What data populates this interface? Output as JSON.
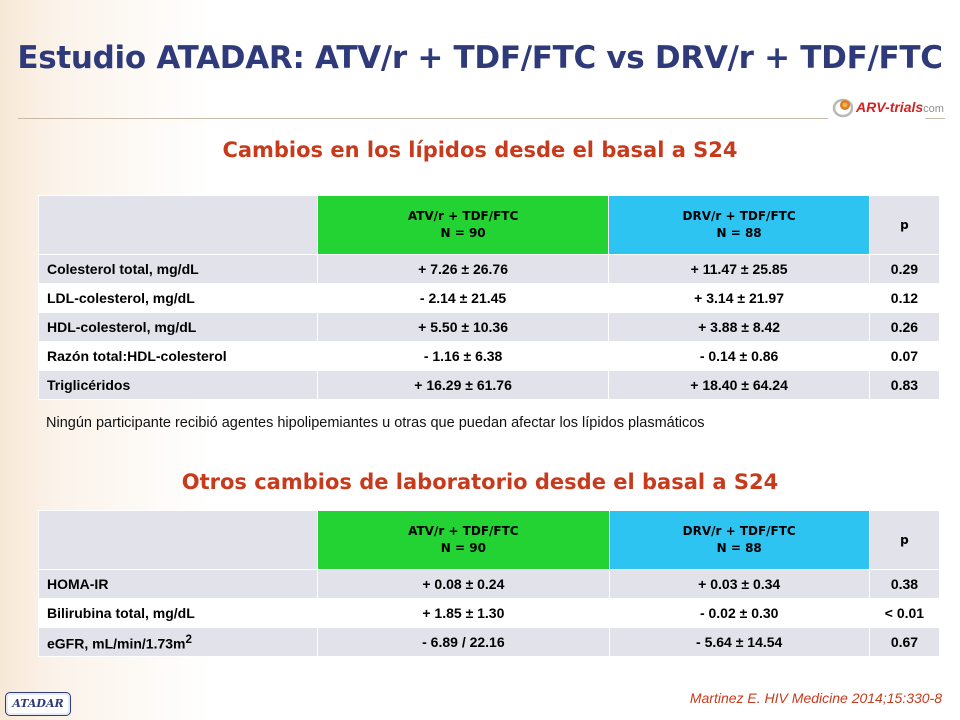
{
  "title": "Estudio ATADAR: ATV/r + TDF/FTC vs DRV/r + TDF/FTC",
  "logo": {
    "brand": "ARV-trials",
    "suffix": "com"
  },
  "lipids": {
    "heading": "Cambios en los lípidos desde el basal a S24",
    "columns": {
      "atv_line1": "ATV/r + TDF/FTC",
      "atv_line2": "N = 90",
      "drv_line1": "DRV/r + TDF/FTC",
      "drv_line2": "N = 88",
      "p": "p"
    },
    "rows": [
      {
        "label": "Colesterol total, mg/dL",
        "atv": "+ 7.26 ± 26.76",
        "drv": "+ 11.47 ± 25.85",
        "p": "0.29"
      },
      {
        "label": "LDL-colesterol, mg/dL",
        "atv": "- 2.14 ± 21.45",
        "drv": "+ 3.14 ± 21.97",
        "p": "0.12"
      },
      {
        "label": "HDL-colesterol, mg/dL",
        "atv": "+ 5.50 ± 10.36",
        "drv": "+ 3.88 ± 8.42",
        "p": "0.26"
      },
      {
        "label": "Razón total:HDL-colesterol",
        "atv": "- 1.16 ± 6.38",
        "drv": "- 0.14 ± 0.86",
        "p": "0.07"
      },
      {
        "label": "Triglicéridos",
        "atv": "+ 16.29 ± 61.76",
        "drv": "+ 18.40 ± 64.24",
        "p": "0.83"
      }
    ],
    "note": "Ningún participante recibió agentes hipolipemiantes u otras que puedan afectar los lípidos plasmáticos"
  },
  "labs": {
    "heading": "Otros cambios de laboratorio desde el basal a S24",
    "columns": {
      "atv_line1": "ATV/r + TDF/FTC",
      "atv_line2": "N = 90",
      "drv_line1": "DRV/r + TDF/FTC",
      "drv_line2": "N = 88",
      "p": "p"
    },
    "rows": [
      {
        "label": "HOMA-IR",
        "atv": "+ 0.08 ± 0.24",
        "drv": "+ 0.03 ± 0.34",
        "p": "0.38"
      },
      {
        "label": "Bilirubina total, mg/dL",
        "atv": "+ 1.85 ± 1.30",
        "drv": "- 0.02 ± 0.30",
        "p": "< 0.01"
      },
      {
        "label": "eGFR, mL/min/1.73m",
        "label_sup": "2",
        "atv": "- 6.89 / 22.16",
        "drv": "- 5.64 ± 14.54",
        "p": "0.67"
      }
    ]
  },
  "citation": "Martinez E. HIV Medicine 2014;15:330-8",
  "badge": "ATADAR"
}
